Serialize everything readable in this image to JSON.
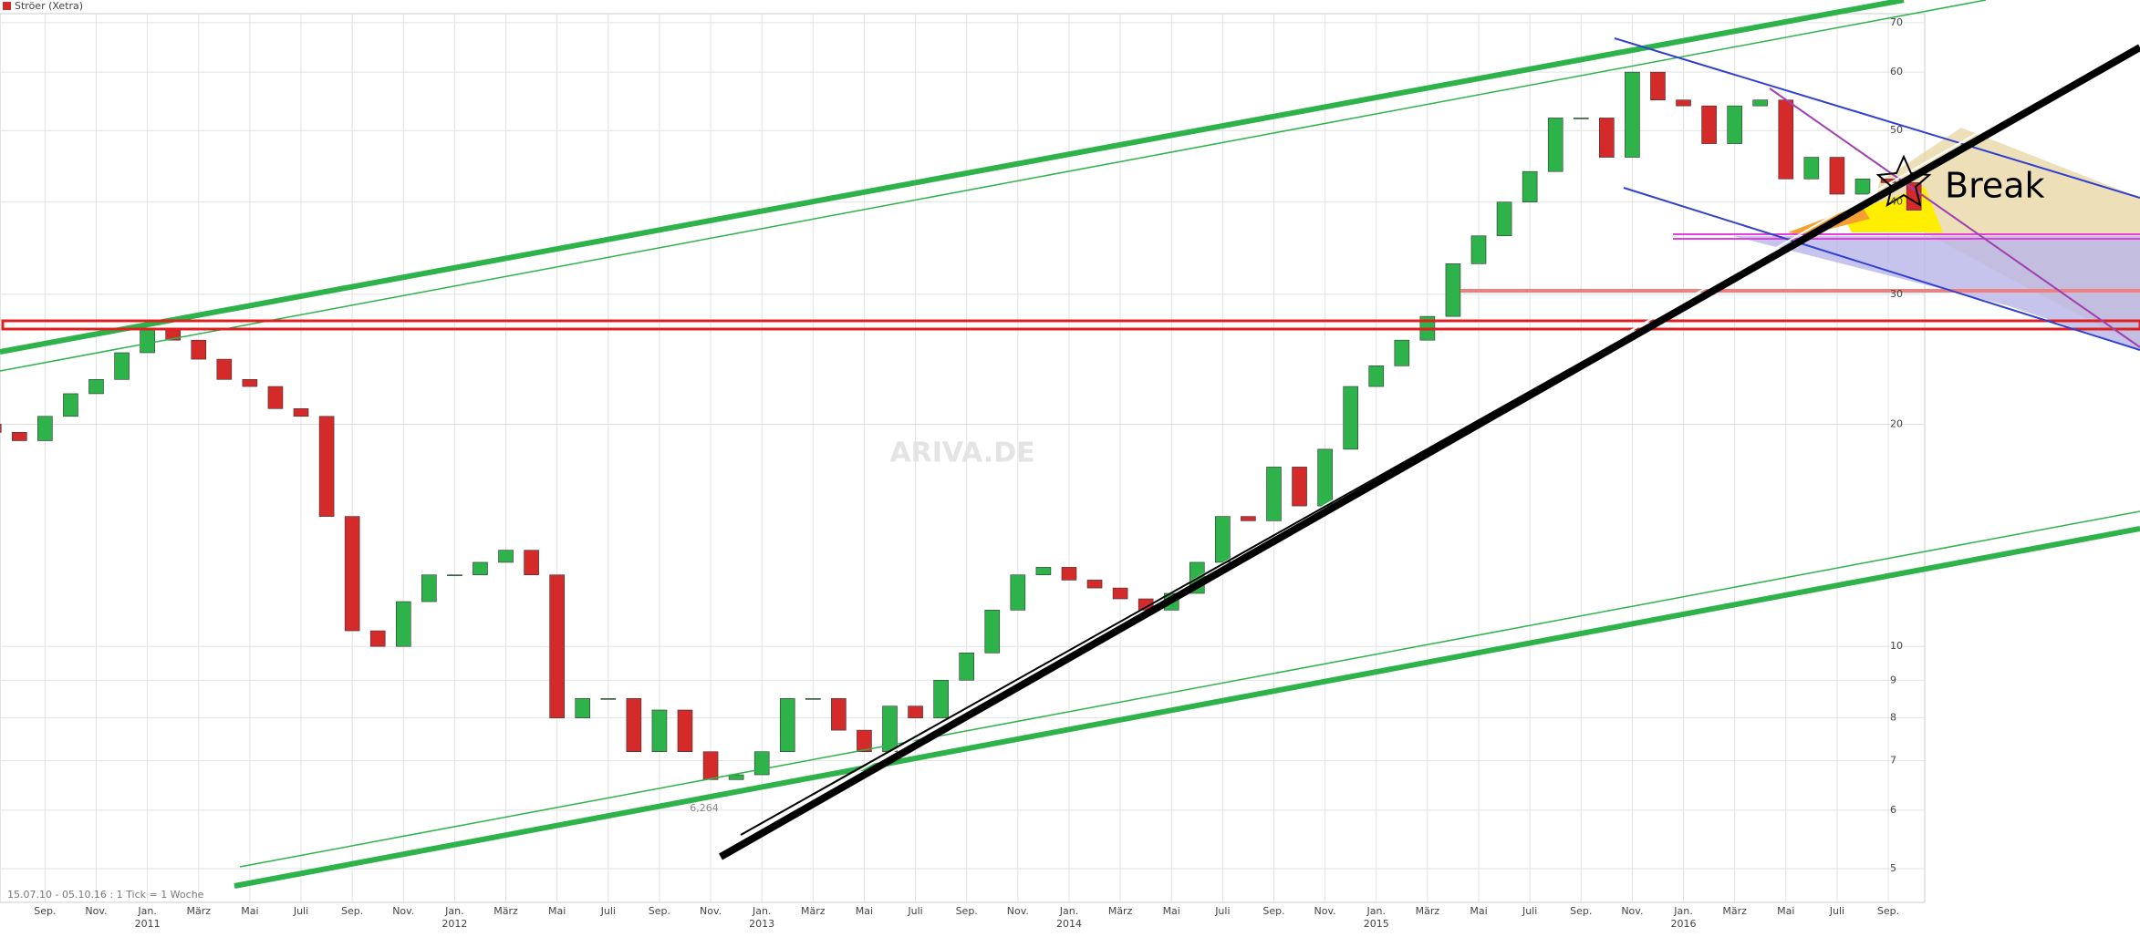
{
  "chart_data": {
    "type": "candlestick",
    "title": "Ströer (Xetra)",
    "footnote": "15.07.10 - 05.10.16 : 1 Tick = 1 Woche",
    "annotations": [
      "Break",
      "6,264"
    ],
    "watermark": "ARIVA.DE",
    "log_scale": true,
    "grid": true,
    "up_color": "#2db34a",
    "down_color": "#d42a2a",
    "x": [
      "2010-07",
      "2010-08",
      "2010-09",
      "2010-10",
      "2010-11",
      "2010-12",
      "2011-01",
      "2011-02",
      "2011-03",
      "2011-04",
      "2011-05",
      "2011-06",
      "2011-07",
      "2011-08",
      "2011-09",
      "2011-10",
      "2011-11",
      "2011-12",
      "2012-01",
      "2012-02",
      "2012-03",
      "2012-04",
      "2012-05",
      "2012-06",
      "2012-07",
      "2012-08",
      "2012-09",
      "2012-10",
      "2012-11",
      "2012-12",
      "2013-01",
      "2013-02",
      "2013-03",
      "2013-04",
      "2013-05",
      "2013-06",
      "2013-07",
      "2013-08",
      "2013-09",
      "2013-10",
      "2013-11",
      "2013-12",
      "2014-01",
      "2014-02",
      "2014-03",
      "2014-04",
      "2014-05",
      "2014-06",
      "2014-07",
      "2014-08",
      "2014-09",
      "2014-10",
      "2014-11",
      "2014-12",
      "2015-01",
      "2015-02",
      "2015-03",
      "2015-04",
      "2015-05",
      "2015-06",
      "2015-07",
      "2015-08",
      "2015-09",
      "2015-10",
      "2015-11",
      "2015-12",
      "2016-01",
      "2016-02",
      "2016-03",
      "2016-04",
      "2016-05",
      "2016-06",
      "2016-07",
      "2016-08",
      "2016-09",
      "2016-10"
    ],
    "open": [
      20,
      19.5,
      19,
      20.5,
      22,
      23,
      25,
      27,
      26,
      24.5,
      23,
      22.5,
      21,
      20.5,
      15,
      10.5,
      10,
      11.5,
      12.5,
      12.5,
      13,
      13.5,
      12.5,
      8,
      8.5,
      8.5,
      7.2,
      8.2,
      7.2,
      6.6,
      6.7,
      7.2,
      8.5,
      8.5,
      7.7,
      7.2,
      8.3,
      8,
      9,
      9.8,
      11.2,
      12.5,
      12.8,
      12.3,
      12,
      11.6,
      11.2,
      11.8,
      13,
      15,
      14.8,
      17.5,
      15.5,
      18.5,
      22.5,
      24,
      26,
      28,
      33,
      36,
      40,
      44,
      52,
      52,
      46,
      60,
      55,
      54,
      48,
      54,
      55,
      43,
      46,
      41,
      43,
      42.5
    ],
    "close": [
      19.5,
      19,
      20.5,
      22,
      23,
      25,
      27,
      26,
      24.5,
      23,
      22.5,
      21,
      20.5,
      15,
      10.5,
      10,
      11.5,
      12.5,
      12.5,
      13,
      13.5,
      12.5,
      8,
      8.5,
      8.5,
      7.2,
      8.2,
      7.2,
      6.6,
      6.7,
      7.2,
      8.5,
      8.5,
      7.7,
      7.2,
      8.3,
      8,
      9,
      9.8,
      11.2,
      12.5,
      12.8,
      12.3,
      12,
      11.6,
      11.2,
      11.8,
      13,
      15,
      14.8,
      17.5,
      15.5,
      18.5,
      22.5,
      24,
      26,
      28,
      33,
      36,
      40,
      44,
      52,
      52,
      46,
      60,
      55,
      54,
      48,
      54,
      55,
      43,
      46,
      41,
      43,
      42.5,
      39
    ],
    "ylim": [
      4.5,
      72
    ],
    "yticks": [
      5,
      6,
      7,
      8,
      9,
      10,
      20,
      30,
      40,
      50,
      60,
      70
    ],
    "xticks": [
      {
        "value": "2010-09",
        "label": "Sep."
      },
      {
        "value": "2010-11",
        "label": "Nov."
      },
      {
        "value": "2011-01",
        "label": "Jan."
      },
      {
        "value": "2011-03",
        "label": "März"
      },
      {
        "value": "2011-05",
        "label": "Mai"
      },
      {
        "value": "2011-07",
        "label": "Juli"
      },
      {
        "value": "2011-09",
        "label": "Sep."
      },
      {
        "value": "2011-11",
        "label": "Nov."
      },
      {
        "value": "2012-01",
        "label": "Jan."
      },
      {
        "value": "2012-03",
        "label": "März"
      },
      {
        "value": "2012-05",
        "label": "Mai"
      },
      {
        "value": "2012-07",
        "label": "Juli"
      },
      {
        "value": "2012-09",
        "label": "Sep."
      },
      {
        "value": "2012-11",
        "label": "Nov."
      },
      {
        "value": "2013-01",
        "label": "Jan."
      },
      {
        "value": "2013-03",
        "label": "März"
      },
      {
        "value": "2013-05",
        "label": "Mai"
      },
      {
        "value": "2013-07",
        "label": "Juli"
      },
      {
        "value": "2013-09",
        "label": "Sep."
      },
      {
        "value": "2013-11",
        "label": "Nov."
      },
      {
        "value": "2014-01",
        "label": "Jan."
      },
      {
        "value": "2014-03",
        "label": "März"
      },
      {
        "value": "2014-05",
        "label": "Mai"
      },
      {
        "value": "2014-07",
        "label": "Juli"
      },
      {
        "value": "2014-09",
        "label": "Sep."
      },
      {
        "value": "2014-11",
        "label": "Nov."
      },
      {
        "value": "2015-01",
        "label": "Jan."
      },
      {
        "value": "2015-03",
        "label": "März"
      },
      {
        "value": "2015-05",
        "label": "Mai"
      },
      {
        "value": "2015-07",
        "label": "Juli"
      },
      {
        "value": "2015-09",
        "label": "Sep."
      },
      {
        "value": "2015-11",
        "label": "Nov."
      },
      {
        "value": "2016-01",
        "label": "Jan."
      },
      {
        "value": "2016-03",
        "label": "März"
      },
      {
        "value": "2016-05",
        "label": "Mai"
      },
      {
        "value": "2016-07",
        "label": "Juli"
      },
      {
        "value": "2016-09",
        "label": "Sep."
      }
    ],
    "year_labels": [
      {
        "value": "2011-01",
        "label": "2011"
      },
      {
        "value": "2012-01",
        "label": "2012"
      },
      {
        "value": "2013-01",
        "label": "2013"
      },
      {
        "value": "2014-01",
        "label": "2014"
      },
      {
        "value": "2015-01",
        "label": "2015"
      },
      {
        "value": "2016-01",
        "label": "2016"
      }
    ]
  }
}
